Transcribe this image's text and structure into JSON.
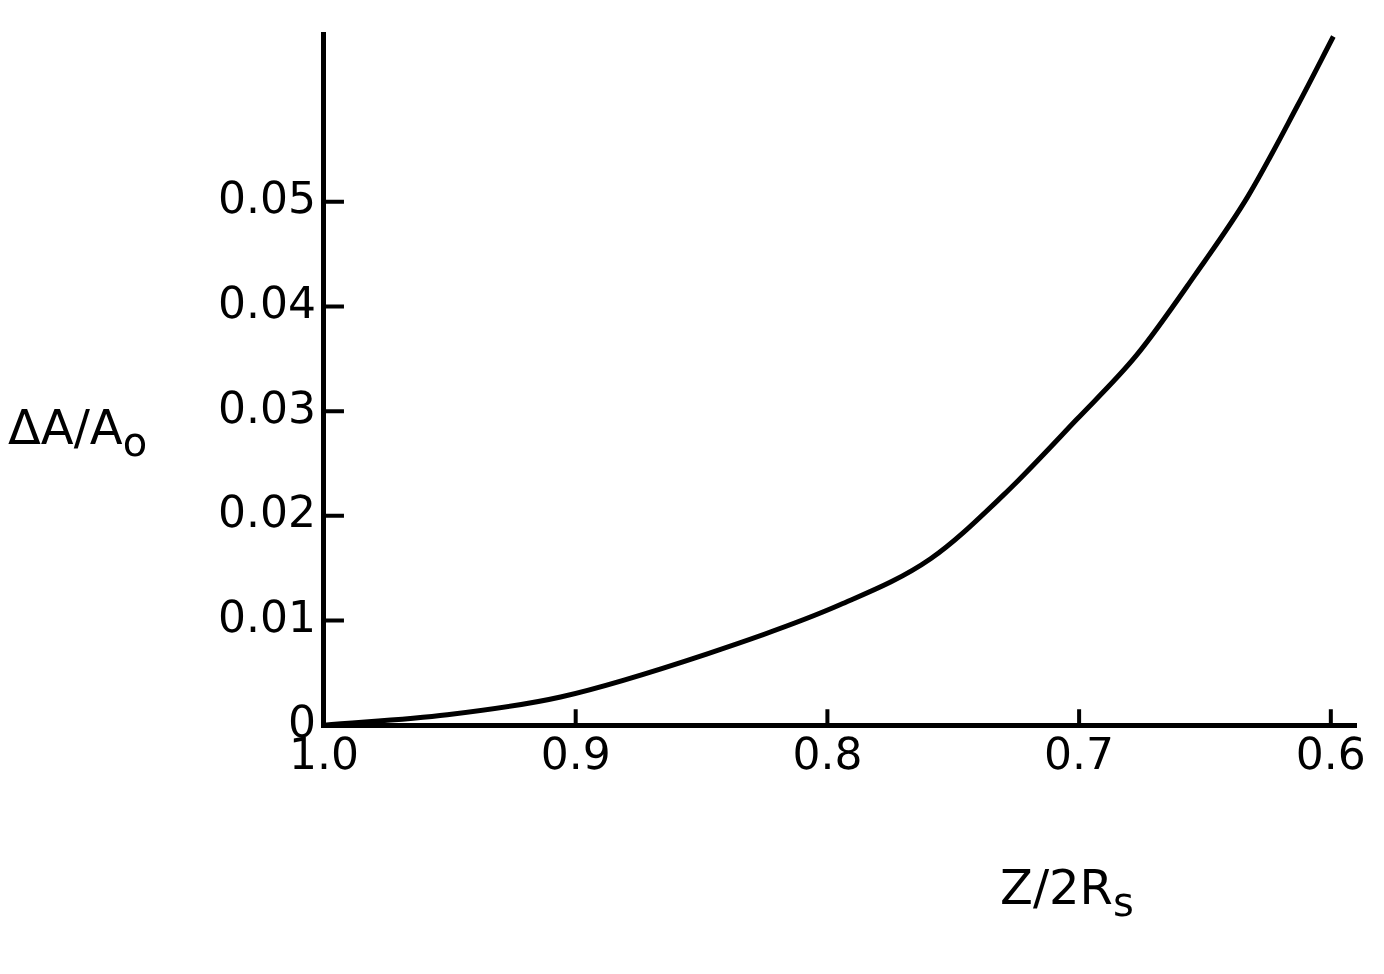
{
  "chart_data": {
    "type": "line",
    "xlabel": "Z/2R$_{s}$",
    "ylabel": "ΔA/A$_{o}$",
    "x": [
      1.0,
      0.951,
      0.906,
      0.848,
      0.795,
      0.759,
      0.73,
      0.701,
      0.677,
      0.654,
      0.633,
      0.613,
      0.599
    ],
    "series": [
      {
        "color": "#000000",
        "values": [
          0,
          0.001,
          0.0027,
          0.0068,
          0.0115,
          0.0159,
          0.022,
          0.0292,
          0.0354,
          0.043,
          0.0505,
          0.0593,
          0.0658
        ]
      }
    ],
    "xlim": [
      1.0,
      0.59
    ],
    "xticks": [
      {
        "value": 1.0,
        "label": "1.0"
      },
      0.9,
      0.8,
      0.7,
      0.6
    ],
    "ylim": [
      0,
      0.066
    ],
    "yticks": [
      0,
      0.01,
      0.02,
      0.03,
      0.04,
      0.05
    ],
    "legend": false
  }
}
